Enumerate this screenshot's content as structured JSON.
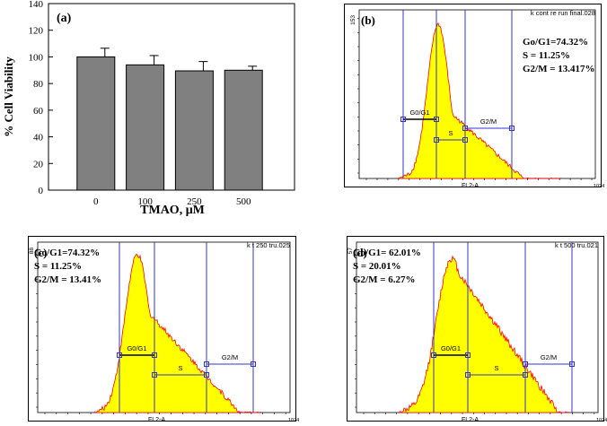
{
  "chart_data": [
    {
      "id": "a",
      "type": "bar",
      "panel_label": "(a)",
      "categories": [
        "0",
        "100",
        "250",
        "500"
      ],
      "values": [
        100,
        94,
        89.5,
        90
      ],
      "errors": [
        6.5,
        7,
        7,
        3
      ],
      "title": "",
      "xlabel": "TMAO, μM",
      "ylabel": "% Cell Viability",
      "ylim": [
        0,
        140
      ],
      "yticks": [
        "0",
        "20",
        "40",
        "60",
        "80",
        "100",
        "120",
        "140"
      ],
      "bar_color": "#808080"
    },
    {
      "id": "b",
      "type": "area",
      "panel_label": "(b)",
      "file_label": "k cont re run final.028",
      "xlabel": "FL2-A",
      "ymax_label": "153",
      "xmax_label": "1024",
      "stats": [
        "Go/G1=74.32%",
        "S = 11.25%",
        "G2/M = 13.417%"
      ],
      "gates": [
        "G0/G1",
        "S",
        "G2/M"
      ],
      "fill_color": "#ffff00",
      "outline_color": "#ff0000",
      "gate_color": "#3333cc"
    },
    {
      "id": "c",
      "type": "area",
      "panel_label": "(c)",
      "file_label": "k t 250 tru.025",
      "xlabel": "FL2-A",
      "ymax_label": "88",
      "xmax_label": "1024",
      "stats": [
        "Go/G1=74.32%",
        "S = 11.25%",
        "G2/M = 13.41%"
      ],
      "gates": [
        "G0/G1",
        "S",
        "G2/M"
      ],
      "fill_color": "#ffff00",
      "outline_color": "#ff0000",
      "gate_color": "#3333cc"
    },
    {
      "id": "d",
      "type": "area",
      "panel_label": "(d)",
      "file_label": "k t 500 tru.021",
      "xlabel": "FL2-A",
      "ymax_label": "57",
      "xmax_label": "1024",
      "stats": [
        "Go/G1= 62.01%",
        "S = 20.01%",
        "G2/M = 6.27%"
      ],
      "gates": [
        "G0/G1",
        "S",
        "G2/M"
      ],
      "fill_color": "#ffff00",
      "outline_color": "#ff0000",
      "gate_color": "#3333cc"
    }
  ]
}
